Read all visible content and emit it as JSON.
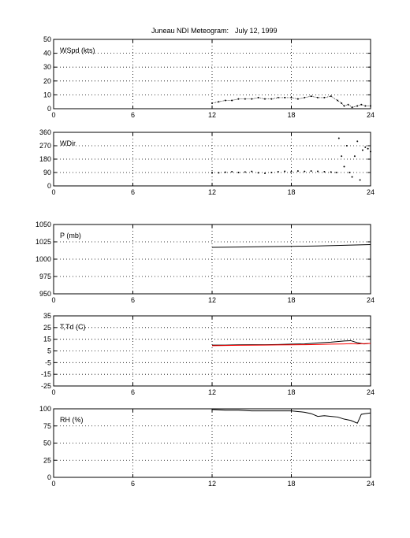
{
  "figure_title": "Juneau NDI Meteogram:",
  "figure_date": "July 12, 1999",
  "chart_data": [
    {
      "type": "line",
      "ylabel": "WSpd (kts)",
      "xlim": [
        0,
        24
      ],
      "ylim": [
        0,
        50
      ],
      "xticks": [
        0,
        6,
        12,
        18,
        24
      ],
      "yticks": [
        0,
        10,
        20,
        30,
        40,
        50
      ],
      "grid": true,
      "series": [
        {
          "color": "#000000",
          "style": "dots",
          "x": [
            12,
            12.5,
            13,
            13.5,
            14,
            14.5,
            15,
            15.5,
            16,
            16.5,
            17,
            17.5,
            18,
            18.5,
            19,
            19.5,
            20,
            20.5,
            21,
            21.5,
            21.8,
            22,
            22.3,
            22.6,
            23,
            23.3,
            23.6,
            24
          ],
          "y": [
            4,
            5,
            6,
            6,
            7,
            7,
            7,
            8,
            7,
            7,
            8,
            8,
            8,
            7,
            8,
            9,
            8,
            8,
            9,
            6,
            4,
            2,
            3,
            1,
            2,
            3,
            2,
            2
          ]
        }
      ]
    },
    {
      "type": "scatter",
      "ylabel": "WDir",
      "xlim": [
        0,
        24
      ],
      "ylim": [
        0,
        360
      ],
      "xticks": [
        0,
        6,
        12,
        18,
        24
      ],
      "yticks": [
        0,
        90,
        180,
        270,
        360
      ],
      "grid": true,
      "series": [
        {
          "color": "#000000",
          "style": "dots",
          "x": [
            12,
            12.5,
            13,
            13.5,
            14,
            14.5,
            15,
            15.5,
            16,
            16.5,
            17,
            17.5,
            18,
            18.5,
            19,
            19.5,
            20,
            20.5,
            21,
            21.4,
            21.6,
            21.8,
            22,
            22.2,
            22.4,
            22.6,
            22.8,
            23,
            23.2,
            23.4,
            23.6,
            23.8,
            24
          ],
          "y": [
            90,
            88,
            92,
            95,
            90,
            93,
            97,
            88,
            85,
            90,
            95,
            98,
            95,
            100,
            97,
            100,
            98,
            95,
            93,
            90,
            320,
            200,
            130,
            270,
            90,
            60,
            200,
            300,
            40,
            240,
            260,
            250,
            230
          ]
        }
      ]
    },
    {
      "type": "line",
      "ylabel": "P (mb)",
      "xlim": [
        0,
        24
      ],
      "ylim": [
        950,
        1050
      ],
      "xticks": [
        0,
        6,
        12,
        18,
        24
      ],
      "yticks": [
        950,
        975,
        1000,
        1025,
        1050
      ],
      "grid": true,
      "series": [
        {
          "color": "#000000",
          "style": "line",
          "x": [
            12,
            14,
            16,
            18,
            20,
            22,
            24
          ],
          "y": [
            1017,
            1017.5,
            1018,
            1018.5,
            1019,
            1020,
            1021
          ]
        }
      ]
    },
    {
      "type": "line",
      "ylabel": "T,Td (C)",
      "xlim": [
        0,
        24
      ],
      "ylim": [
        -25,
        35
      ],
      "xticks": [
        0,
        6,
        12,
        18,
        24
      ],
      "yticks": [
        -25,
        -15,
        -5,
        5,
        15,
        25,
        35
      ],
      "grid": true,
      "series": [
        {
          "color": "#000000",
          "style": "line",
          "x": [
            12,
            13,
            14,
            15,
            16,
            17,
            18,
            19,
            20,
            21,
            22,
            22.5,
            23,
            23.5,
            24
          ],
          "y": [
            10,
            10,
            10.2,
            10.3,
            10.3,
            10.5,
            10.8,
            11,
            11.8,
            12.5,
            13.5,
            13.8,
            12,
            11,
            11.5
          ]
        },
        {
          "color": "#ff0000",
          "style": "line",
          "x": [
            12,
            13,
            14,
            15,
            16,
            17,
            18,
            19,
            20,
            21,
            22,
            22.5,
            23,
            23.5,
            24
          ],
          "y": [
            9.5,
            9.6,
            9.8,
            9.9,
            10,
            10.1,
            10.2,
            10.3,
            10.5,
            10.8,
            11,
            11.2,
            11,
            11.2,
            11.4
          ]
        }
      ]
    },
    {
      "type": "line",
      "ylabel": "RH (%)",
      "xlim": [
        0,
        24
      ],
      "ylim": [
        0,
        100
      ],
      "xticks": [
        0,
        6,
        12,
        18,
        24
      ],
      "yticks": [
        0,
        25,
        50,
        75,
        100
      ],
      "grid": true,
      "series": [
        {
          "color": "#000000",
          "style": "line",
          "x": [
            12,
            13,
            14,
            15,
            16,
            17,
            18,
            18.5,
            19,
            19.5,
            20,
            20.5,
            21,
            21.5,
            22,
            22.5,
            23,
            23.3,
            23.6,
            24
          ],
          "y": [
            99,
            98,
            98,
            97,
            97,
            97,
            97,
            96,
            95,
            93,
            89,
            90,
            89,
            88,
            85,
            83,
            79,
            92,
            93,
            94
          ]
        }
      ]
    }
  ]
}
